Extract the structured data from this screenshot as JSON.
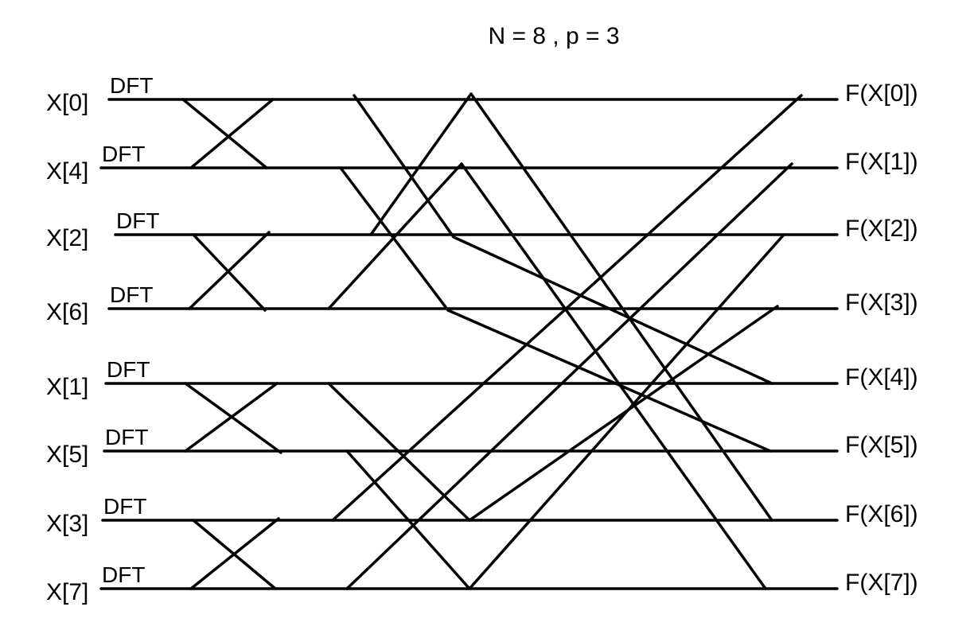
{
  "title": "N = 8  ,  p = 3",
  "dft_label": "DFT",
  "inputs": [
    "X[0]",
    "X[4]",
    "X[2]",
    "X[6]",
    "X[1]",
    "X[5]",
    "X[3]",
    "X[7]"
  ],
  "outputs": [
    "F(X[0])",
    "F(X[1])",
    "F(X[2])",
    "F(X[3])",
    "F(X[4])",
    "F(X[5])",
    "F(X[6])",
    "F(X[7])"
  ]
}
